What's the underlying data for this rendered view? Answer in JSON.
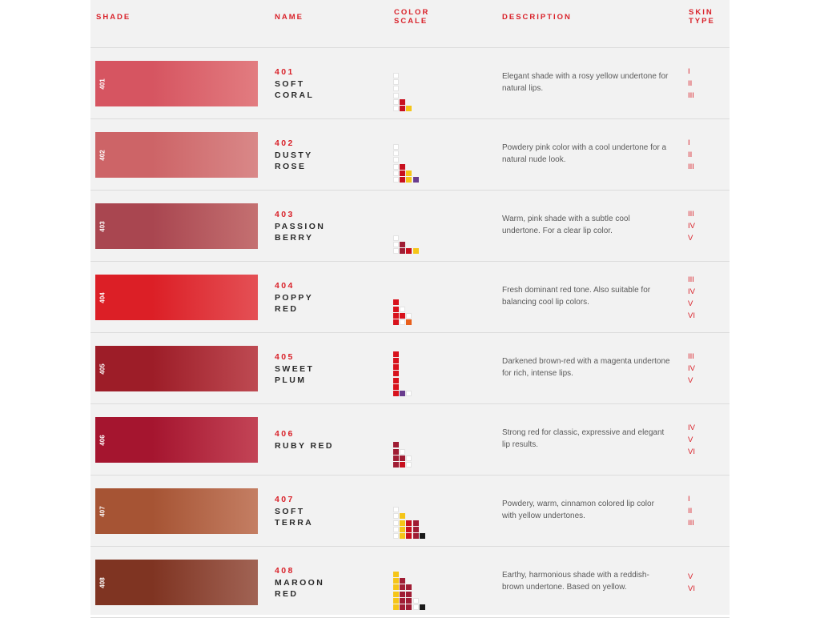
{
  "header": {
    "shade": "SHADE",
    "name": "NAME",
    "color_scale": "COLOR SCALE",
    "description": "DESCRIPTION",
    "skin_type": "SKIN TYPE"
  },
  "rows": [
    {
      "code": "401",
      "name_lines": [
        "SOFT",
        "CORAL"
      ],
      "swatch_from": "#d65561",
      "swatch_to": "#e27c80",
      "description": "Elegant shade with a rosy yellow undertone for natural lips.",
      "skin": [
        "I",
        "II",
        "III"
      ],
      "scale": [
        [
          "e"
        ],
        [
          "e"
        ],
        [
          "e"
        ],
        [
          "e"
        ],
        [
          "e",
          "#c8101e"
        ],
        [
          "e",
          "#c8101e",
          "#f5c518"
        ]
      ]
    },
    {
      "code": "402",
      "name_lines": [
        "DUSTY",
        "ROSE"
      ],
      "swatch_from": "#cd6467",
      "swatch_to": "#d98888",
      "description": "Powdery pink color with a cool undertone for a natural nude look.",
      "skin": [
        "I",
        "II",
        "III"
      ],
      "scale": [
        [
          "e"
        ],
        [
          "e"
        ],
        [
          "e"
        ],
        [
          "e",
          "#c8101e"
        ],
        [
          "e",
          "#c8101e",
          "#f5c518"
        ],
        [
          "e",
          "#c8101e",
          "#f5c518",
          "#6a3d8f"
        ]
      ]
    },
    {
      "code": "403",
      "name_lines": [
        "PASSION",
        "BERRY"
      ],
      "swatch_from": "#a94650",
      "swatch_to": "#c47071",
      "description": "Warm, pink shade with a subtle cool undertone. For a clear lip color.",
      "skin": [
        "III",
        "IV",
        "V"
      ],
      "scale": [
        [
          "e"
        ],
        [
          "e",
          "#a01d34"
        ],
        [
          "e",
          "#a01d34",
          "#c8101e",
          "#f5c518"
        ]
      ]
    },
    {
      "code": "404",
      "name_lines": [
        "POPPY",
        "RED"
      ],
      "swatch_from": "#dc1f26",
      "swatch_to": "#e45055",
      "description": "Fresh dominant red tone. Also suitable for balancing cool lip colors.",
      "skin": [
        "III",
        "IV",
        "V",
        "VI"
      ],
      "scale": [
        [
          "#d8121c"
        ],
        [
          "#d8121c",
          "e"
        ],
        [
          "#d8121c",
          "#d8121c",
          "e"
        ],
        [
          "#d8121c",
          "e",
          "#e8601c"
        ]
      ]
    },
    {
      "code": "405",
      "name_lines": [
        "SWEET",
        "PLUM"
      ],
      "swatch_from": "#9d1d28",
      "swatch_to": "#be4a52",
      "description": "Darkened brown-red with a magenta undertone for rich, intense lips.",
      "skin": [
        "III",
        "IV",
        "V"
      ],
      "scale": [
        [
          "#d8121c"
        ],
        [
          "#d8121c"
        ],
        [
          "#d8121c"
        ],
        [
          "#d8121c"
        ],
        [
          "#d8121c"
        ],
        [
          "#d8121c"
        ],
        [
          "#d8121c",
          "#6a3d8f",
          "e"
        ]
      ]
    },
    {
      "code": "406",
      "name_lines": [
        "RUBY RED"
      ],
      "swatch_from": "#a5152f",
      "swatch_to": "#c34456",
      "description": "Strong red for classic, expressive and elegant lip results.",
      "skin": [
        "IV",
        "V",
        "VI"
      ],
      "scale": [
        [
          "#a01d34"
        ],
        [
          "#a01d34",
          "e"
        ],
        [
          "#a01d34",
          "#a01d34",
          "e"
        ],
        [
          "#a01d34",
          "#c8101e",
          "e"
        ]
      ]
    },
    {
      "code": "407",
      "name_lines": [
        "SOFT",
        "TERRA"
      ],
      "swatch_from": "#a65434",
      "swatch_to": "#c47e63",
      "description": "Powdery, warm, cinnamon colored lip color with yellow undertones.",
      "skin": [
        "I",
        "II",
        "III"
      ],
      "scale": [
        [
          "e"
        ],
        [
          "e",
          "#f5c518"
        ],
        [
          "e",
          "#f5c518",
          "#c8101e",
          "#a01d34"
        ],
        [
          "e",
          "#f5c518",
          "#c8101e",
          "#a01d34"
        ],
        [
          "e",
          "#f5c518",
          "#c8101e",
          "#a01d34",
          "#1a1a1a"
        ]
      ]
    },
    {
      "code": "408",
      "name_lines": [
        "MAROON",
        "RED"
      ],
      "swatch_from": "#7f3422",
      "swatch_to": "#a16354",
      "description": "Earthy, harmonious shade with a reddish-brown undertone. Based on yellow.",
      "skin": [
        "V",
        "VI"
      ],
      "scale": [
        [
          "#f5c518"
        ],
        [
          "#f5c518",
          "#a01d34"
        ],
        [
          "#f5c518",
          "#a01d34",
          "#a01d34"
        ],
        [
          "#f5c518",
          "#a01d34",
          "#a01d34"
        ],
        [
          "#f5c518",
          "#a01d34",
          "#a01d34",
          "e"
        ],
        [
          "#f5c518",
          "#a01d34",
          "#a01d34",
          "e",
          "#1a1a1a"
        ]
      ]
    }
  ]
}
